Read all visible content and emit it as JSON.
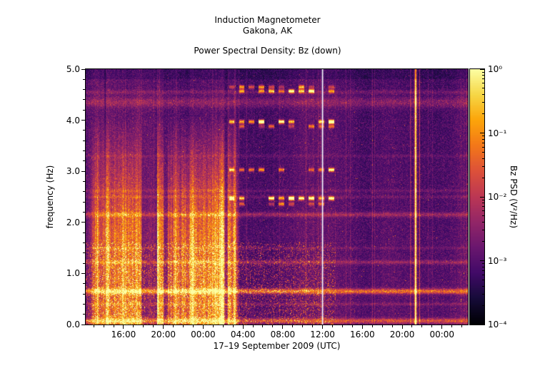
{
  "header": {
    "title": "Induction Magnetometer",
    "location": "Gakona, AK",
    "plot_title": "Power Spectral Density: Bz (down)"
  },
  "chart_data": {
    "type": "heatmap",
    "summary": "Spectrogram of magnetic field PSD vs time and frequency; strong broadband activity from ~14:00 on 17 Sep until ~03:00 on 18 Sep below ~3.5 Hz, rows of periodic interference dashes near 2.4, 2.95, 4.0 and 4.6 Hz between ~02:00 and 12:00, a white data-gap line at 12:00, persistent narrowband lines near 0.65, 1.2, 2.15 and 4.35 Hz, and a bright transient near 21:20 on 18 Sep.",
    "x_axis": {
      "label": "17–19 September 2009 (UTC)",
      "t_min": 12.2,
      "t_max": 50.6,
      "ticks": [
        {
          "t": 16,
          "label": "16:00"
        },
        {
          "t": 20,
          "label": "20:00"
        },
        {
          "t": 24,
          "label": "00:00"
        },
        {
          "t": 28,
          "label": "04:00"
        },
        {
          "t": 32,
          "label": "08:00"
        },
        {
          "t": 36,
          "label": "12:00"
        },
        {
          "t": 40,
          "label": "16:00"
        },
        {
          "t": 44,
          "label": "20:00"
        },
        {
          "t": 48,
          "label": "00:00"
        }
      ],
      "minor_step": 1
    },
    "y_axis": {
      "label": "frequency (Hz)",
      "f_min": 0.0,
      "f_max": 5.0,
      "ticks": [
        {
          "f": 0,
          "label": "0.0"
        },
        {
          "f": 1,
          "label": "1.0"
        },
        {
          "f": 2,
          "label": "2.0"
        },
        {
          "f": 3,
          "label": "3.0"
        },
        {
          "f": 4,
          "label": "4.0"
        },
        {
          "f": 5,
          "label": "5.0"
        }
      ],
      "minor_step": 0.2
    },
    "colorbar": {
      "label": "Bz PSD (V²/Hz)",
      "scale": "log",
      "min_exp": -4,
      "max_exp": 0,
      "ticks": [
        {
          "exp": 0,
          "label": "10⁰"
        },
        {
          "exp": -1,
          "label": "10⁻¹"
        },
        {
          "exp": -2,
          "label": "10⁻²"
        },
        {
          "exp": -3,
          "label": "10⁻³"
        },
        {
          "exp": -4,
          "label": "10⁻⁴"
        }
      ]
    },
    "spectrogram": {
      "seed": 90217,
      "base": {
        "floor": 0.1,
        "col_low": 0.1,
        "col_hi": 0.13,
        "speckle": 0.17,
        "freq_tilt": 0.05,
        "hi_prob": 0.05
      },
      "activity": {
        "t_start": 12.2,
        "t_end": 27.6,
        "ramp": 1.3,
        "fall": 0.45,
        "amp": 0.85,
        "f_knee": 1.8,
        "f_slope": 2.6,
        "f_min": 0.12,
        "gaps": [
          [
            17.8,
            19.4,
            0.1
          ],
          [
            20.0,
            20.45,
            0.35
          ],
          [
            26.1,
            26.45,
            0.5
          ]
        ]
      },
      "mid_speckle": {
        "t_end": 37.3,
        "f_max": 1.6,
        "amp": 0.3
      },
      "h_lines": [
        [
          0.65,
          0.05,
          0.42
        ],
        [
          1.22,
          0.04,
          0.16
        ],
        [
          2.15,
          0.045,
          0.18
        ],
        [
          0.4,
          0.03,
          0.1
        ],
        [
          4.35,
          0.1,
          0.14
        ],
        [
          4.55,
          0.04,
          0.1
        ],
        [
          1.5,
          0.03,
          0.07
        ],
        [
          2.62,
          0.03,
          0.07
        ],
        [
          3.3,
          0.03,
          0.06
        ],
        [
          0.07,
          0.05,
          0.32
        ],
        [
          2.5,
          0.03,
          0.08
        ]
      ],
      "dash_rows": {
        "t_start": 26.6,
        "t_end": 37.3,
        "period": 1.0,
        "duty": 0.55,
        "rows": [
          [
            4.57,
            0.5
          ],
          [
            4.65,
            0.35
          ],
          [
            3.97,
            0.75
          ],
          [
            3.88,
            0.35
          ],
          [
            3.03,
            0.5
          ],
          [
            2.47,
            0.7
          ],
          [
            2.36,
            0.4
          ]
        ]
      },
      "v_lines": [
        {
          "t": 36.0,
          "w": 0.07,
          "s": 1.0,
          "white": true
        },
        {
          "t": 45.35,
          "w": 0.1,
          "s": 0.8
        },
        {
          "t": 45.75,
          "w": 0.05,
          "s": 0.3
        },
        {
          "t": 44.85,
          "w": 0.05,
          "s": 0.22
        },
        {
          "t": 41.0,
          "w": 0.04,
          "s": 0.15
        }
      ],
      "dark_v_lines": [
        {
          "t": 14.15,
          "w": 0.08,
          "s": 0.5
        }
      ],
      "colormap": [
        [
          0.0,
          "#000004"
        ],
        [
          0.1,
          "#160b39"
        ],
        [
          0.2,
          "#420a68"
        ],
        [
          0.3,
          "#6a176e"
        ],
        [
          0.4,
          "#932667"
        ],
        [
          0.5,
          "#bc3754"
        ],
        [
          0.6,
          "#dd513a"
        ],
        [
          0.7,
          "#f37819"
        ],
        [
          0.8,
          "#fca50a"
        ],
        [
          0.9,
          "#f6d746"
        ],
        [
          1.0,
          "#fcffa4"
        ]
      ]
    }
  }
}
